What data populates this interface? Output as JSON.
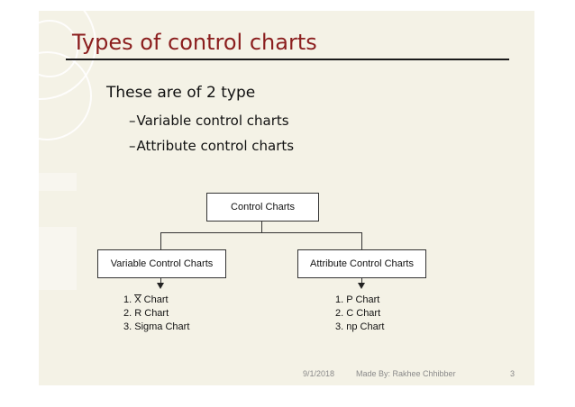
{
  "slide": {
    "title": "Types of control charts",
    "body": "These are of 2 type",
    "bullets": [
      {
        "dash": "–",
        "text": "Variable control charts"
      },
      {
        "dash": "–",
        "text": "Attribute control charts"
      }
    ]
  },
  "diagram": {
    "root": "Control Charts",
    "left": {
      "label": "Variable Control Charts",
      "items": [
        {
          "num": "1.",
          "sym": "X",
          "rest": " Chart"
        },
        {
          "num": "2.",
          "text": "R Chart"
        },
        {
          "num": "3.",
          "text": "Sigma Chart"
        }
      ]
    },
    "right": {
      "label": "Attribute Control Charts",
      "items": [
        {
          "num": "1.",
          "text": "P Chart"
        },
        {
          "num": "2.",
          "text": "C Chart"
        },
        {
          "num": "3.",
          "text": "np Chart"
        }
      ]
    }
  },
  "footer": {
    "date": "9/1/2018",
    "author": "Made By: Rakhee Chhibber",
    "page": "3"
  },
  "colors": {
    "title": "#8b1e1e",
    "slide_bg": "#f4f2e6"
  }
}
